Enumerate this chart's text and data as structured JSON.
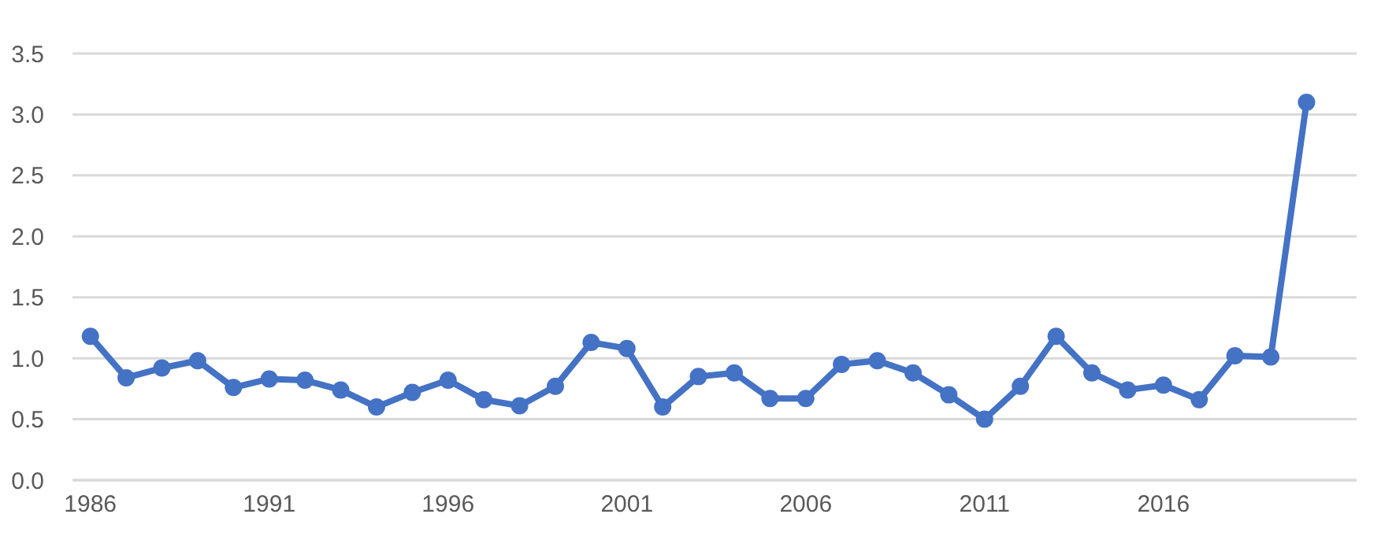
{
  "chart_data": {
    "type": "line",
    "x": [
      1986,
      1987,
      1988,
      1989,
      1990,
      1991,
      1992,
      1993,
      1994,
      1995,
      1996,
      1997,
      1998,
      1999,
      2000,
      2001,
      2002,
      2003,
      2004,
      2005,
      2006,
      2007,
      2008,
      2009,
      2010,
      2011,
      2012,
      2013,
      2014,
      2015,
      2016,
      2017,
      2018,
      2019,
      2020
    ],
    "series": [
      {
        "color": "#4472c4",
        "values": [
          1.18,
          0.84,
          0.92,
          0.98,
          0.76,
          0.83,
          0.82,
          0.74,
          0.6,
          0.72,
          0.82,
          0.66,
          0.61,
          0.77,
          1.13,
          1.08,
          0.6,
          0.85,
          0.88,
          0.67,
          0.67,
          0.95,
          0.98,
          0.88,
          0.7,
          0.5,
          0.77,
          1.18,
          0.88,
          0.74,
          0.78,
          0.66,
          1.02,
          1.01,
          3.1
        ]
      }
    ],
    "xlim": [
      1985.5,
      2021.4
    ],
    "xticks": [
      1986,
      1991,
      1996,
      2001,
      2006,
      2011,
      2016
    ],
    "ylim": [
      0,
      3.5
    ],
    "yticks": [
      {
        "value": 0,
        "label": "0.0"
      },
      {
        "value": 0.5,
        "label": "0.5"
      },
      {
        "value": 1,
        "label": "1.0"
      },
      {
        "value": 1.5,
        "label": "1.5"
      },
      {
        "value": 2,
        "label": "2.0"
      },
      {
        "value": 2.5,
        "label": "2.5"
      },
      {
        "value": 3,
        "label": "3.0"
      },
      {
        "value": 3.5,
        "label": "3.5"
      }
    ],
    "grid": "y",
    "marker": "circle",
    "line_style": "solid"
  }
}
